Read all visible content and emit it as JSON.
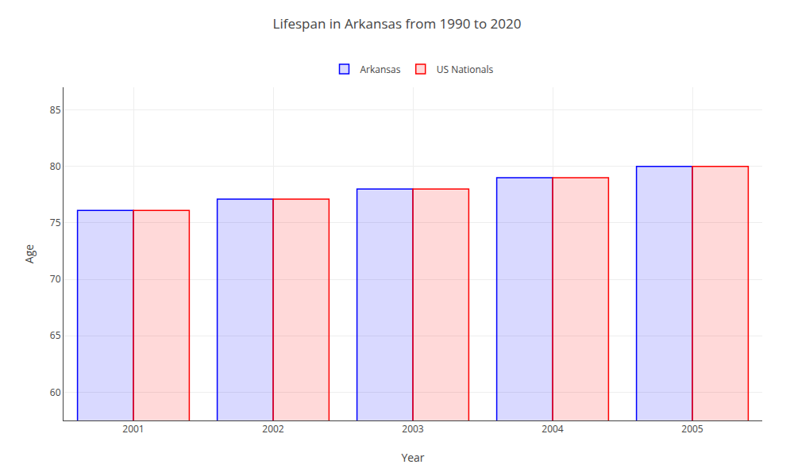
{
  "chart_data": {
    "type": "bar",
    "title": "Lifespan in Arkansas from 1990 to 2020",
    "xlabel": "Year",
    "ylabel": "Age",
    "categories": [
      2001,
      2002,
      2003,
      2004,
      2005
    ],
    "series": [
      {
        "name": "Arkansas",
        "color": "#0000ff",
        "values": [
          76.1,
          77.1,
          78.0,
          79.0,
          80.0
        ]
      },
      {
        "name": "US Nationals",
        "color": "#ff0000",
        "values": [
          76.1,
          77.1,
          78.0,
          79.0,
          80.0
        ]
      }
    ],
    "ylim": [
      57.5,
      87
    ],
    "yticks": [
      60,
      65,
      70,
      75,
      80,
      85
    ],
    "grid": true,
    "legend": "top"
  }
}
